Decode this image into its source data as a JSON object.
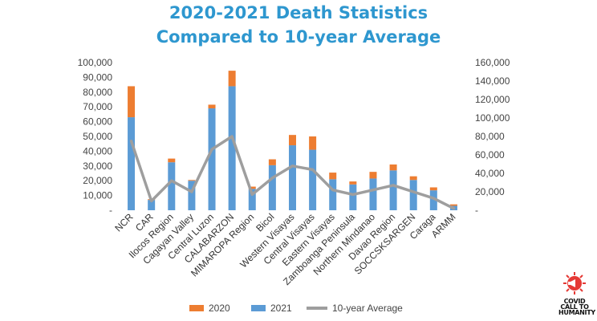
{
  "title": {
    "line1": "2020-2021 Death Statistics",
    "line2": "Compared to 10-year Average"
  },
  "colors": {
    "title": "#2e97cf",
    "series_2020": "#ed7d31",
    "series_2021": "#5b9bd5",
    "series_avg": "#9e9e9e"
  },
  "legend": {
    "item_2020": "2020",
    "item_2021": "2021",
    "item_avg": "10-year Average"
  },
  "logo": {
    "icon": "virus-icon",
    "line1": "COVID",
    "line2": "CALL TO",
    "line3": "HUMANITY"
  },
  "chart_data": {
    "type": "bar",
    "stacked": true,
    "categories": [
      "NCR",
      "CAR",
      "Ilocos Region",
      "Cagayan Valley",
      "Central Luzon",
      "CALABARZON",
      "MIMAROPA Region",
      "Bicol",
      "Western Visayas",
      "Central Visayas",
      "Eastern Visayas",
      "Zamboanga Peninsula",
      "Northern Mindanao",
      "Davao Region",
      "SOCCSKSARGEN",
      "Caraga",
      "ARMM"
    ],
    "series": [
      {
        "name": "2021",
        "axis": "left",
        "values": [
          63000,
          7000,
          32500,
          20000,
          69000,
          84000,
          14500,
          30500,
          44000,
          41000,
          21000,
          17500,
          21500,
          27000,
          20500,
          13500,
          3000
        ]
      },
      {
        "name": "2020",
        "axis": "left",
        "values": [
          21000,
          500,
          2500,
          500,
          2500,
          10500,
          1500,
          4000,
          7000,
          9000,
          4500,
          2000,
          4500,
          4000,
          2500,
          2000,
          1000
        ]
      },
      {
        "name": "10-year Average",
        "type": "line",
        "axis": "right",
        "values": [
          75000,
          10000,
          32000,
          20000,
          66000,
          80000,
          17000,
          35000,
          48000,
          44000,
          22000,
          17000,
          22000,
          27000,
          20000,
          13000,
          2000
        ]
      }
    ],
    "y_left": {
      "min": 0,
      "max": 100000,
      "step": 10000,
      "ticks": [
        "-",
        "10,000",
        "20,000",
        "30,000",
        "40,000",
        "50,000",
        "60,000",
        "70,000",
        "80,000",
        "90,000",
        "100,000"
      ]
    },
    "y_right": {
      "min": 0,
      "max": 160000,
      "step": 20000,
      "ticks": [
        "-",
        "20,000",
        "40,000",
        "60,000",
        "80,000",
        "100,000",
        "120,000",
        "140,000",
        "160,000"
      ]
    },
    "grid": false,
    "legend_position": "bottom"
  }
}
